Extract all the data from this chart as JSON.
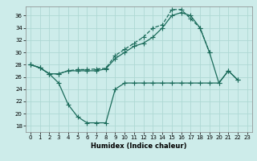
{
  "xlabel": "Humidex (Indice chaleur)",
  "xlim": [
    -0.5,
    23.5
  ],
  "ylim": [
    17,
    37.5
  ],
  "yticks": [
    18,
    20,
    22,
    24,
    26,
    28,
    30,
    32,
    34,
    36
  ],
  "xticks": [
    0,
    1,
    2,
    3,
    4,
    5,
    6,
    7,
    8,
    9,
    10,
    11,
    12,
    13,
    14,
    15,
    16,
    17,
    18,
    19,
    20,
    21,
    22,
    23
  ],
  "bg_color": "#cdecea",
  "grid_color": "#aed8d4",
  "line_color": "#1a6b5a",
  "s1_x": [
    0,
    1,
    2,
    3,
    4,
    5,
    6,
    7,
    8,
    9,
    10,
    11,
    12,
    13,
    14,
    15,
    16,
    17,
    18,
    19,
    20
  ],
  "s1_y": [
    28,
    27.5,
    26.5,
    26.5,
    27,
    27.2,
    27.2,
    27.3,
    27.4,
    29.5,
    30.5,
    31.5,
    32.5,
    34,
    34.5,
    37,
    37,
    35.5,
    34,
    30,
    null
  ],
  "s2_x": [
    0,
    1,
    2,
    3,
    4,
    5,
    6,
    7,
    8,
    9,
    10,
    11,
    12,
    13,
    14,
    15,
    16,
    17,
    18,
    19,
    20,
    21,
    22,
    23
  ],
  "s2_y": [
    28,
    27.5,
    26.5,
    26.5,
    27,
    27,
    27,
    27,
    27.3,
    29,
    30,
    31,
    31.5,
    32.5,
    34,
    36,
    36.5,
    36,
    34,
    30,
    25,
    27,
    25.5,
    null
  ],
  "s3_x": [
    0,
    1,
    2,
    3,
    4,
    5,
    6,
    7,
    8,
    9,
    10,
    11,
    12,
    13,
    14,
    15,
    16,
    17,
    18,
    19,
    20,
    21,
    22
  ],
  "s3_y": [
    28,
    27.5,
    26.5,
    25,
    21.5,
    19.5,
    18.5,
    18.5,
    18.5,
    24,
    25,
    25,
    25,
    25,
    25,
    25,
    25,
    25,
    25,
    25,
    25,
    27,
    25.5
  ]
}
